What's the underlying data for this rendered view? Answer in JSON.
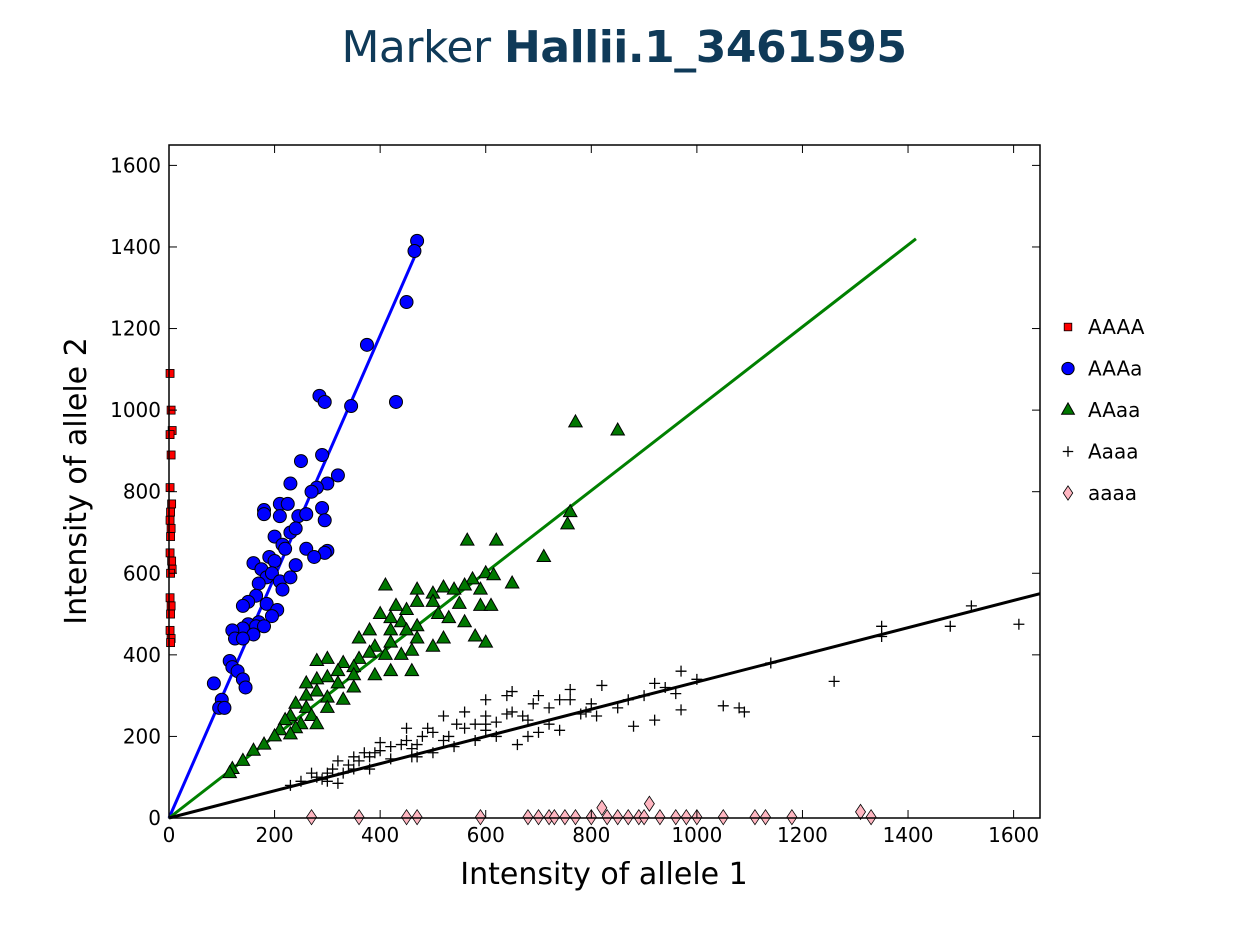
{
  "title": {
    "prefix": "Marker",
    "marker": "Hallii.1_3461595"
  },
  "chart_data": {
    "type": "scatter",
    "title": "Marker Hallii.1_3461595",
    "xlabel": "Intensity of allele 1",
    "ylabel": "Intensity of allele 2",
    "xlim": [
      0,
      1650
    ],
    "ylim": [
      0,
      1650
    ],
    "x_ticks": [
      0,
      200,
      400,
      600,
      800,
      1000,
      1200,
      1400,
      1600
    ],
    "y_ticks": [
      0,
      200,
      400,
      600,
      800,
      1000,
      1200,
      1400,
      1600
    ],
    "legend_position": "right",
    "grid": false,
    "series": [
      {
        "name": "AAAA",
        "marker": "square",
        "color": "#ff0000",
        "points": [
          [
            2,
            1090
          ],
          [
            4,
            1000
          ],
          [
            6,
            950
          ],
          [
            2,
            940
          ],
          [
            4,
            890
          ],
          [
            2,
            810
          ],
          [
            5,
            770
          ],
          [
            3,
            750
          ],
          [
            2,
            730
          ],
          [
            4,
            710
          ],
          [
            3,
            690
          ],
          [
            2,
            650
          ],
          [
            5,
            630
          ],
          [
            6,
            610
          ],
          [
            3,
            600
          ],
          [
            2,
            540
          ],
          [
            4,
            520
          ],
          [
            3,
            500
          ],
          [
            2,
            460
          ],
          [
            4,
            440
          ],
          [
            3,
            430
          ]
        ]
      },
      {
        "name": "AAAa",
        "marker": "circle",
        "color": "#0000ff",
        "points": [
          [
            470,
            1415
          ],
          [
            465,
            1390
          ],
          [
            450,
            1265
          ],
          [
            375,
            1160
          ],
          [
            345,
            1010
          ],
          [
            430,
            1020
          ],
          [
            285,
            1035
          ],
          [
            295,
            1020
          ],
          [
            290,
            890
          ],
          [
            320,
            840
          ],
          [
            300,
            820
          ],
          [
            280,
            810
          ],
          [
            270,
            800
          ],
          [
            250,
            875
          ],
          [
            230,
            820
          ],
          [
            210,
            770
          ],
          [
            225,
            770
          ],
          [
            245,
            740
          ],
          [
            180,
            755
          ],
          [
            180,
            745
          ],
          [
            260,
            745
          ],
          [
            290,
            760
          ],
          [
            295,
            730
          ],
          [
            210,
            740
          ],
          [
            230,
            700
          ],
          [
            240,
            710
          ],
          [
            200,
            690
          ],
          [
            215,
            670
          ],
          [
            190,
            640
          ],
          [
            200,
            630
          ],
          [
            220,
            660
          ],
          [
            160,
            625
          ],
          [
            175,
            610
          ],
          [
            185,
            590
          ],
          [
            195,
            600
          ],
          [
            170,
            575
          ],
          [
            210,
            580
          ],
          [
            230,
            590
          ],
          [
            215,
            560
          ],
          [
            165,
            545
          ],
          [
            150,
            530
          ],
          [
            140,
            520
          ],
          [
            185,
            525
          ],
          [
            205,
            510
          ],
          [
            195,
            495
          ],
          [
            170,
            480
          ],
          [
            150,
            475
          ],
          [
            165,
            470
          ],
          [
            180,
            470
          ],
          [
            140,
            465
          ],
          [
            160,
            450
          ],
          [
            120,
            460
          ],
          [
            125,
            440
          ],
          [
            140,
            440
          ],
          [
            115,
            385
          ],
          [
            120,
            370
          ],
          [
            130,
            360
          ],
          [
            140,
            340
          ],
          [
            145,
            320
          ],
          [
            85,
            330
          ],
          [
            100,
            290
          ],
          [
            95,
            270
          ],
          [
            105,
            270
          ],
          [
            300,
            655
          ],
          [
            295,
            650
          ],
          [
            260,
            660
          ],
          [
            275,
            640
          ],
          [
            240,
            620
          ]
        ]
      },
      {
        "name": "AAaa",
        "marker": "triangle",
        "color": "#007700",
        "points": [
          [
            770,
            970
          ],
          [
            850,
            950
          ],
          [
            760,
            750
          ],
          [
            755,
            720
          ],
          [
            710,
            640
          ],
          [
            565,
            680
          ],
          [
            620,
            680
          ],
          [
            600,
            600
          ],
          [
            575,
            585
          ],
          [
            560,
            570
          ],
          [
            615,
            595
          ],
          [
            650,
            575
          ],
          [
            590,
            560
          ],
          [
            520,
            565
          ],
          [
            540,
            560
          ],
          [
            500,
            550
          ],
          [
            470,
            560
          ],
          [
            410,
            570
          ],
          [
            470,
            530
          ],
          [
            500,
            530
          ],
          [
            550,
            525
          ],
          [
            590,
            520
          ],
          [
            610,
            520
          ],
          [
            450,
            510
          ],
          [
            430,
            520
          ],
          [
            400,
            500
          ],
          [
            420,
            490
          ],
          [
            440,
            480
          ],
          [
            510,
            500
          ],
          [
            530,
            490
          ],
          [
            560,
            480
          ],
          [
            470,
            470
          ],
          [
            450,
            460
          ],
          [
            420,
            460
          ],
          [
            380,
            460
          ],
          [
            360,
            440
          ],
          [
            390,
            420
          ],
          [
            420,
            430
          ],
          [
            470,
            440
          ],
          [
            520,
            440
          ],
          [
            580,
            445
          ],
          [
            600,
            430
          ],
          [
            500,
            420
          ],
          [
            460,
            410
          ],
          [
            440,
            400
          ],
          [
            410,
            400
          ],
          [
            380,
            405
          ],
          [
            360,
            390
          ],
          [
            330,
            380
          ],
          [
            350,
            370
          ],
          [
            300,
            390
          ],
          [
            280,
            385
          ],
          [
            320,
            360
          ],
          [
            350,
            350
          ],
          [
            390,
            350
          ],
          [
            420,
            360
          ],
          [
            460,
            360
          ],
          [
            300,
            345
          ],
          [
            280,
            340
          ],
          [
            260,
            330
          ],
          [
            320,
            330
          ],
          [
            350,
            320
          ],
          [
            280,
            310
          ],
          [
            260,
            300
          ],
          [
            300,
            295
          ],
          [
            330,
            290
          ],
          [
            240,
            280
          ],
          [
            260,
            270
          ],
          [
            300,
            270
          ],
          [
            230,
            250
          ],
          [
            270,
            250
          ],
          [
            220,
            240
          ],
          [
            250,
            230
          ],
          [
            280,
            230
          ],
          [
            240,
            220
          ],
          [
            210,
            215
          ],
          [
            230,
            205
          ],
          [
            200,
            200
          ],
          [
            180,
            180
          ],
          [
            160,
            165
          ],
          [
            140,
            140
          ],
          [
            120,
            120
          ],
          [
            115,
            110
          ]
        ]
      },
      {
        "name": "Aaaa",
        "marker": "plus",
        "color": "#000000",
        "points": [
          [
            1610,
            475
          ],
          [
            1520,
            520
          ],
          [
            1480,
            470
          ],
          [
            1350,
            470
          ],
          [
            1350,
            445
          ],
          [
            1260,
            335
          ],
          [
            1140,
            380
          ],
          [
            1090,
            260
          ],
          [
            1080,
            270
          ],
          [
            1050,
            275
          ],
          [
            1000,
            340
          ],
          [
            970,
            360
          ],
          [
            940,
            320
          ],
          [
            920,
            330
          ],
          [
            870,
            290
          ],
          [
            900,
            300
          ],
          [
            960,
            305
          ],
          [
            970,
            265
          ],
          [
            920,
            240
          ],
          [
            880,
            225
          ],
          [
            850,
            270
          ],
          [
            820,
            325
          ],
          [
            810,
            250
          ],
          [
            800,
            280
          ],
          [
            790,
            260
          ],
          [
            780,
            255
          ],
          [
            760,
            315
          ],
          [
            760,
            290
          ],
          [
            740,
            290
          ],
          [
            720,
            270
          ],
          [
            700,
            300
          ],
          [
            690,
            280
          ],
          [
            670,
            250
          ],
          [
            680,
            240
          ],
          [
            650,
            260
          ],
          [
            640,
            255
          ],
          [
            620,
            235
          ],
          [
            600,
            230
          ],
          [
            600,
            215
          ],
          [
            580,
            230
          ],
          [
            560,
            220
          ],
          [
            545,
            230
          ],
          [
            530,
            200
          ],
          [
            520,
            190
          ],
          [
            500,
            210
          ],
          [
            490,
            220
          ],
          [
            480,
            200
          ],
          [
            470,
            180
          ],
          [
            460,
            170
          ],
          [
            450,
            190
          ],
          [
            440,
            180
          ],
          [
            420,
            175
          ],
          [
            400,
            165
          ],
          [
            390,
            160
          ],
          [
            380,
            150
          ],
          [
            370,
            160
          ],
          [
            360,
            140
          ],
          [
            350,
            150
          ],
          [
            340,
            130
          ],
          [
            320,
            140
          ],
          [
            310,
            120
          ],
          [
            300,
            110
          ],
          [
            280,
            100
          ],
          [
            270,
            110
          ],
          [
            250,
            90
          ],
          [
            230,
            80
          ],
          [
            300,
            90
          ],
          [
            320,
            85
          ],
          [
            400,
            185
          ],
          [
            450,
            220
          ],
          [
            470,
            150
          ],
          [
            520,
            250
          ],
          [
            560,
            260
          ],
          [
            600,
            290
          ],
          [
            640,
            300
          ],
          [
            700,
            210
          ],
          [
            720,
            230
          ],
          [
            740,
            215
          ],
          [
            620,
            200
          ],
          [
            660,
            180
          ],
          [
            540,
            175
          ],
          [
            500,
            160
          ],
          [
            460,
            150
          ],
          [
            420,
            145
          ],
          [
            380,
            120
          ],
          [
            350,
            120
          ],
          [
            330,
            110
          ],
          [
            290,
            95
          ],
          [
            600,
            250
          ],
          [
            650,
            310
          ],
          [
            580,
            190
          ],
          [
            680,
            200
          ]
        ]
      },
      {
        "name": "aaaa",
        "marker": "diamond",
        "color": "#ffb6c1",
        "points": [
          [
            270,
            2
          ],
          [
            360,
            2
          ],
          [
            450,
            2
          ],
          [
            470,
            2
          ],
          [
            590,
            2
          ],
          [
            680,
            2
          ],
          [
            700,
            2
          ],
          [
            720,
            2
          ],
          [
            730,
            2
          ],
          [
            750,
            2
          ],
          [
            770,
            2
          ],
          [
            800,
            2
          ],
          [
            820,
            25
          ],
          [
            830,
            2
          ],
          [
            850,
            2
          ],
          [
            870,
            2
          ],
          [
            890,
            2
          ],
          [
            900,
            2
          ],
          [
            910,
            35
          ],
          [
            930,
            2
          ],
          [
            960,
            2
          ],
          [
            980,
            2
          ],
          [
            1000,
            2
          ],
          [
            1050,
            2
          ],
          [
            1110,
            2
          ],
          [
            1130,
            2
          ],
          [
            1180,
            2
          ],
          [
            1310,
            15
          ],
          [
            1330,
            2
          ]
        ]
      }
    ],
    "fit_lines": [
      {
        "series": "AAAa",
        "color": "#0000ff",
        "from": [
          0,
          0
        ],
        "to": [
          470,
          1390
        ]
      },
      {
        "series": "AAaa",
        "color": "#008000",
        "from": [
          0,
          0
        ],
        "to": [
          1415,
          1420
        ]
      },
      {
        "series": "Aaaa",
        "color": "#000000",
        "from": [
          0,
          0
        ],
        "to": [
          1650,
          550
        ]
      }
    ]
  }
}
